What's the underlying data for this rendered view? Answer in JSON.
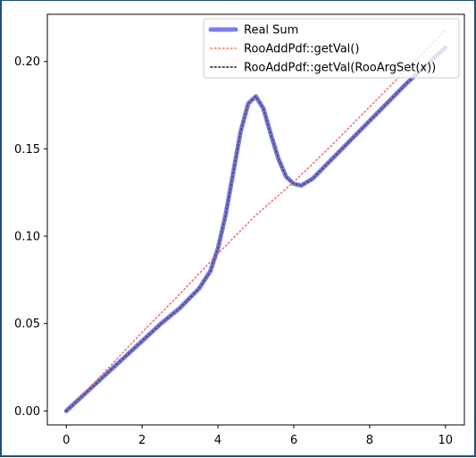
{
  "chart_data": {
    "type": "line",
    "title": "",
    "xlabel": "",
    "ylabel": "",
    "xlim": [
      -0.5,
      10.5
    ],
    "ylim": [
      -0.008,
      0.227
    ],
    "xticks": [
      0,
      2,
      4,
      6,
      8,
      10
    ],
    "yticks": [
      0.0,
      0.05,
      0.1,
      0.15,
      0.2
    ],
    "xtick_labels": [
      "0",
      "2",
      "4",
      "6",
      "8",
      "10"
    ],
    "ytick_labels": [
      "0.00",
      "0.05",
      "0.10",
      "0.15",
      "0.20"
    ],
    "grid": false,
    "legend_position": "top-right",
    "series": [
      {
        "name": "Real Sum",
        "color": "#7b7bf3",
        "style": "solid",
        "x": [
          0,
          0.5,
          1,
          1.5,
          2,
          2.5,
          3,
          3.5,
          3.8,
          4,
          4.2,
          4.4,
          4.6,
          4.8,
          5,
          5.2,
          5.4,
          5.6,
          5.8,
          6,
          6.2,
          6.5,
          7,
          7.5,
          8,
          8.5,
          9,
          9.5,
          10
        ],
        "values": [
          0.0,
          0.01,
          0.02,
          0.03,
          0.04,
          0.05,
          0.059,
          0.07,
          0.08,
          0.093,
          0.112,
          0.136,
          0.16,
          0.176,
          0.18,
          0.173,
          0.158,
          0.144,
          0.134,
          0.13,
          0.129,
          0.133,
          0.144,
          0.155,
          0.166,
          0.177,
          0.188,
          0.198,
          0.208
        ]
      },
      {
        "name": "RooAddPdf::getVal()",
        "color": "#f06b6b",
        "style": "dotted",
        "x": [
          0,
          1,
          2,
          3,
          4,
          5,
          6,
          7,
          8,
          9,
          10
        ],
        "values": [
          0.0,
          0.022,
          0.045,
          0.067,
          0.09,
          0.112,
          0.131,
          0.152,
          0.174,
          0.196,
          0.218
        ]
      },
      {
        "name": "RooAddPdf::getVal(RooArgSet(x))",
        "color": "#555555",
        "style": "dotted",
        "x": [
          0,
          0.5,
          1,
          1.5,
          2,
          2.5,
          3,
          3.5,
          3.8,
          4,
          4.2,
          4.4,
          4.6,
          4.8,
          5,
          5.2,
          5.4,
          5.6,
          5.8,
          6,
          6.2,
          6.5,
          7,
          7.5,
          8,
          8.5,
          9,
          9.5,
          10
        ],
        "values": [
          0.0,
          0.01,
          0.02,
          0.03,
          0.04,
          0.05,
          0.059,
          0.07,
          0.08,
          0.093,
          0.112,
          0.136,
          0.16,
          0.176,
          0.18,
          0.173,
          0.158,
          0.144,
          0.134,
          0.13,
          0.129,
          0.133,
          0.144,
          0.155,
          0.166,
          0.177,
          0.188,
          0.198,
          0.208
        ]
      }
    ]
  }
}
